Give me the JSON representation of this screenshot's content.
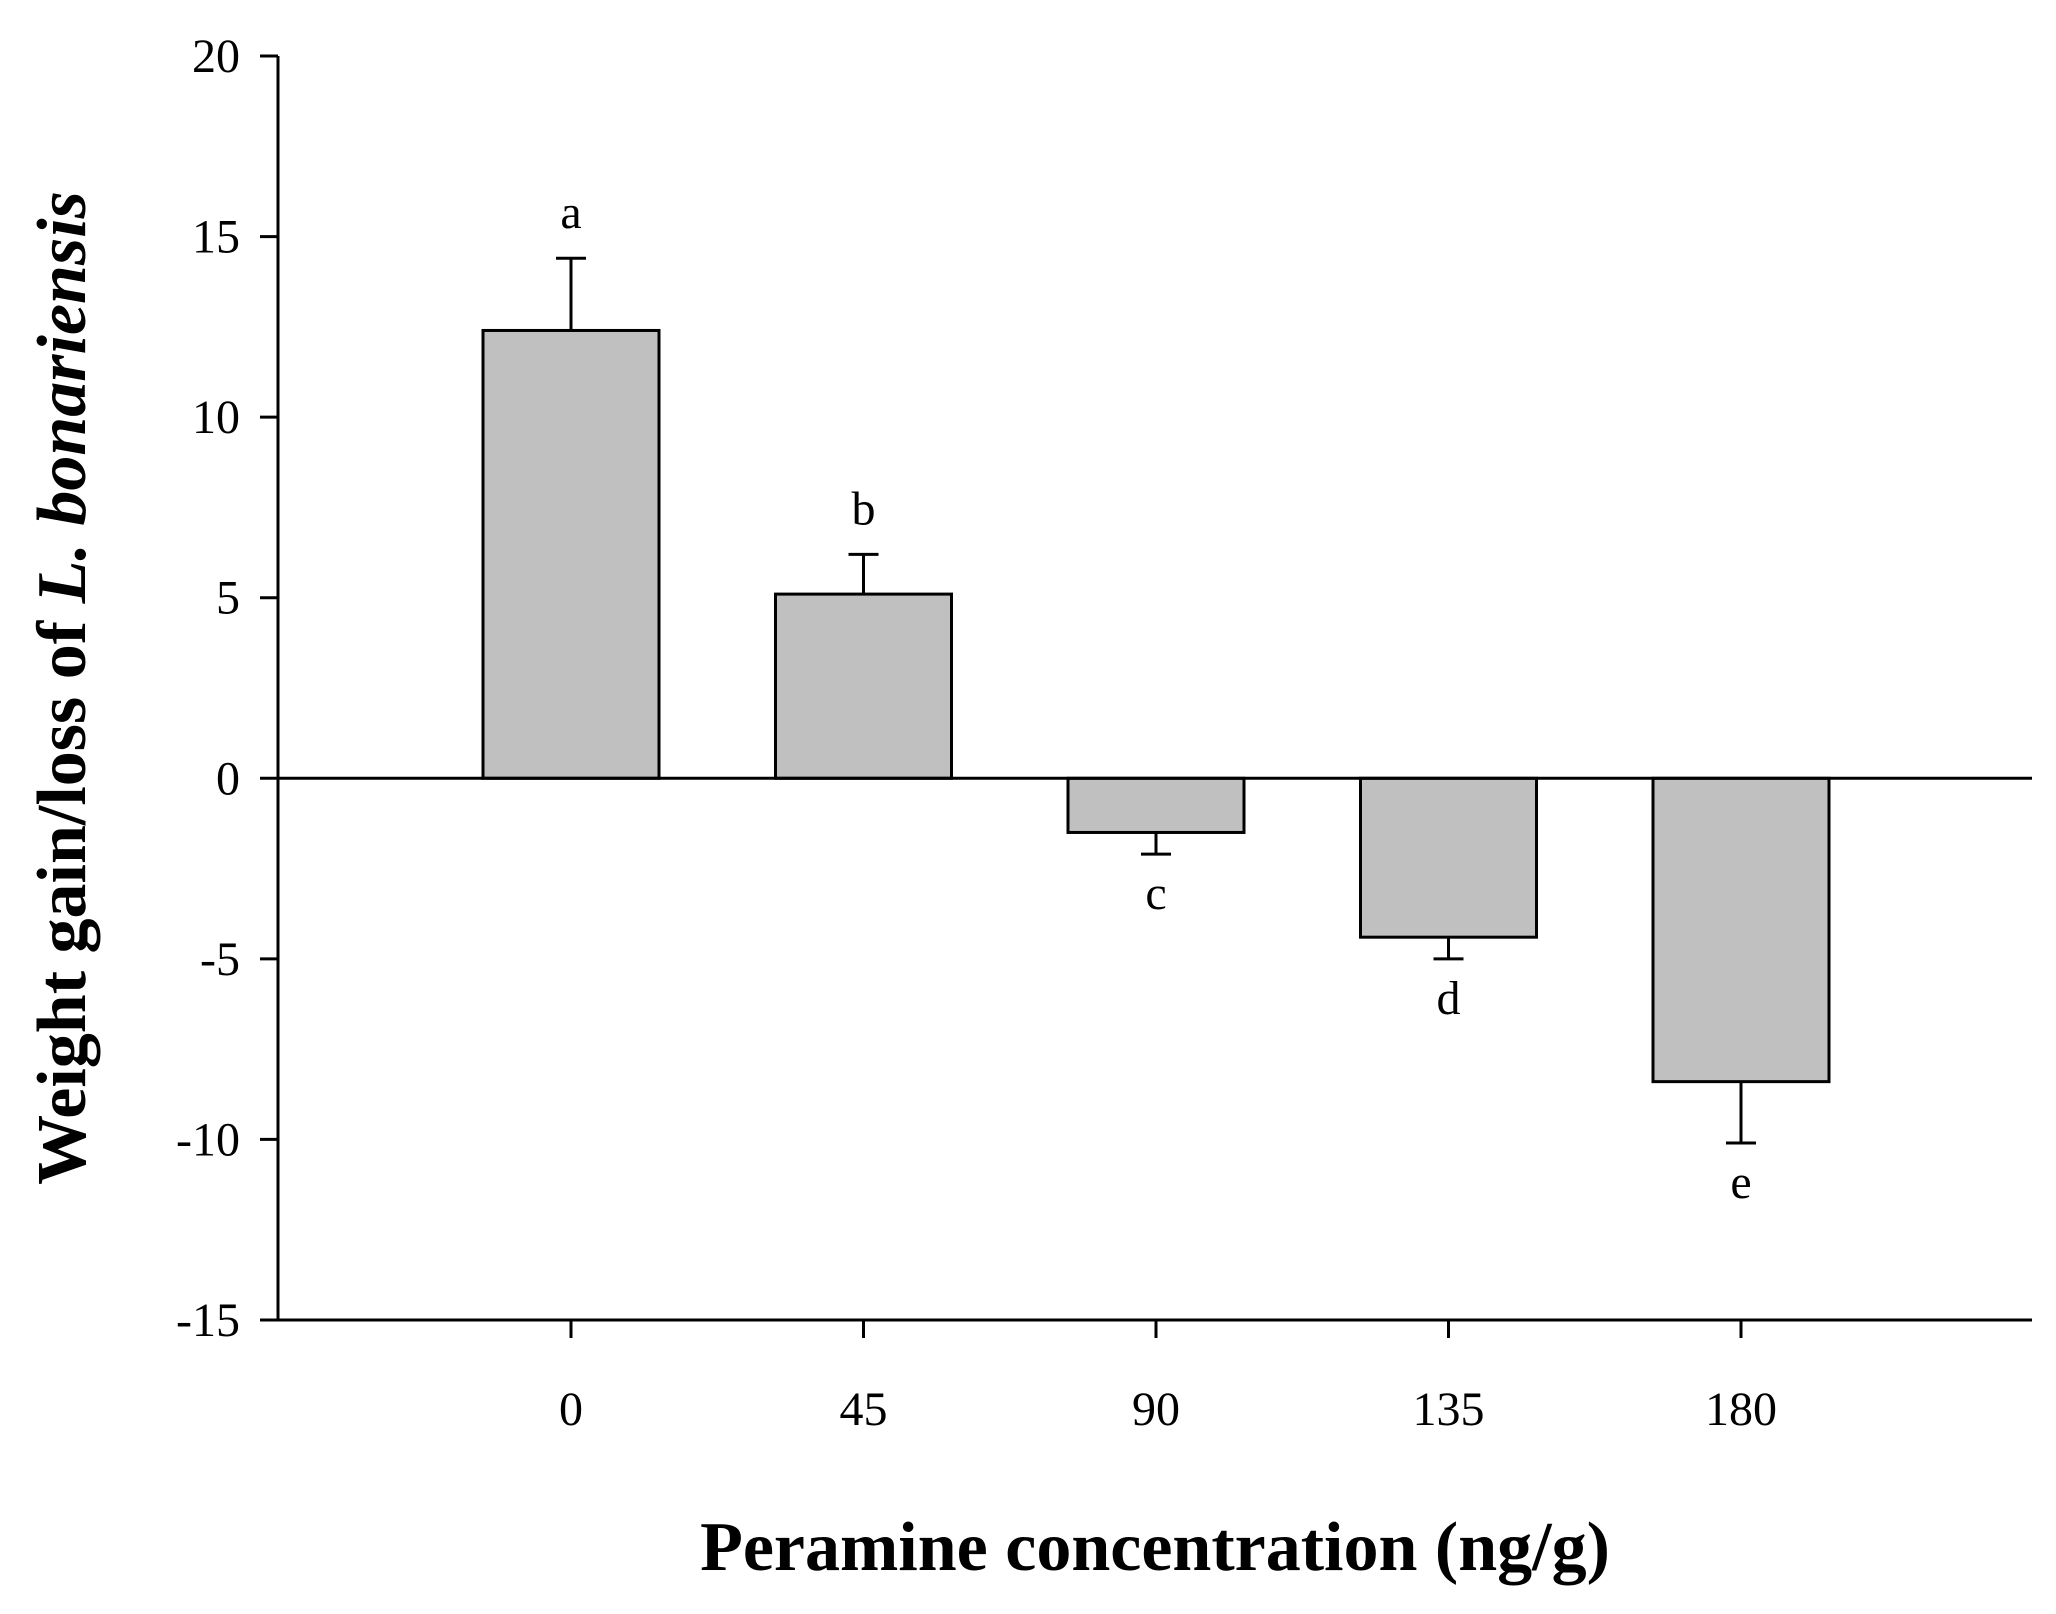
{
  "chart_data": {
    "type": "bar",
    "title": "",
    "xlabel": "Peramine concentration (ng/g)",
    "ylabel_prefix": "Weight gain/loss of ",
    "ylabel_italic": "L. bonariensis",
    "categories": [
      "0",
      "45",
      "90",
      "135",
      "180"
    ],
    "values": [
      12.4,
      5.1,
      -1.5,
      -4.4,
      -8.4
    ],
    "errors": [
      2.0,
      1.1,
      0.6,
      0.6,
      1.7
    ],
    "significance": [
      "a",
      "b",
      "c",
      "d",
      "e"
    ],
    "ylim": [
      -15,
      20
    ],
    "yticks": [
      20,
      15,
      10,
      5,
      0,
      -5,
      -10,
      -15
    ],
    "bar_color": "#c0c0c0",
    "grid": false
  }
}
